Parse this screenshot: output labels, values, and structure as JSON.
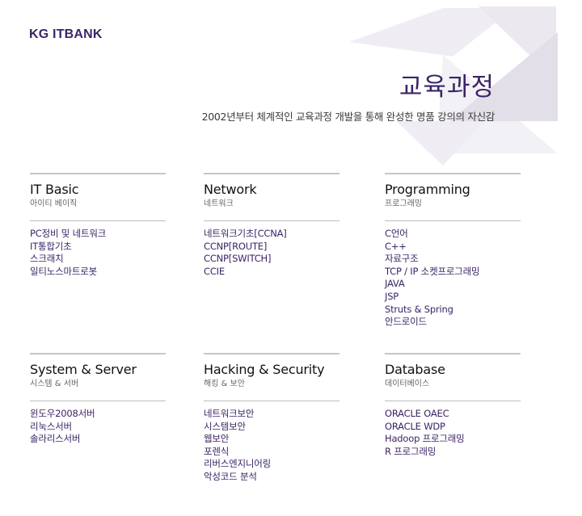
{
  "brand": {
    "logo": "KG ITBANK"
  },
  "header": {
    "title": "교육과정",
    "subtitle": "2002년부터 체계적인 교육과정 개발을 통해 완성한 명품 강의의 자신감"
  },
  "colors": {
    "accent": "#3b2466",
    "deco_light": "#efedf3",
    "deco_mid": "#e2dfe8"
  },
  "categories": [
    {
      "title": "IT Basic",
      "subtitle": "아이티 베이직",
      "items": [
        "PC정비 및 네트워크",
        "IT통합기초",
        "스크래치",
        "일티노스마트로봇"
      ]
    },
    {
      "title": "Network",
      "subtitle": "네트워크",
      "items": [
        "네트워크기초[CCNA]",
        "CCNP[ROUTE]",
        "CCNP[SWITCH]",
        "CCIE"
      ]
    },
    {
      "title": "Programming",
      "subtitle": "프로그래밍",
      "items": [
        "C언어",
        "C++",
        "자료구조",
        "TCP / IP 소켓프로그래밍",
        "JAVA",
        "JSP",
        "Struts & Spring",
        "안드로이드"
      ]
    },
    {
      "title": "System & Server",
      "subtitle": "시스템 & 서버",
      "items": [
        "윈도우2008서버",
        "리눅스서버",
        "솔라리스서버"
      ]
    },
    {
      "title": "Hacking & Security",
      "subtitle": "해킹 & 보안",
      "items": [
        "네트워크보안",
        "시스템보안",
        "웹보안",
        "포렌식",
        "리버스엔지니어링",
        "악성코드 분석"
      ]
    },
    {
      "title": "Database",
      "subtitle": "데이터베이스",
      "items": [
        "ORACLE OAEC",
        "ORACLE WDP",
        "Hadoop 프로그래밍",
        "R 프로그래밍"
      ]
    }
  ]
}
